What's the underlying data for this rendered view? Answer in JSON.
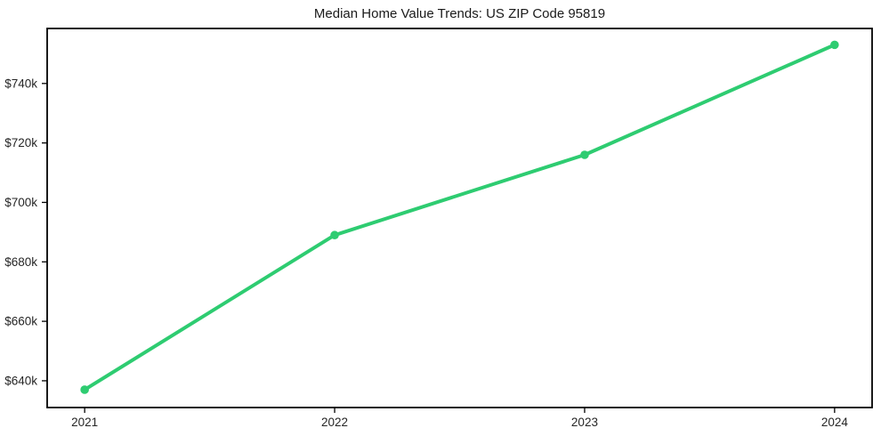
{
  "chart": {
    "title": "Median Home Value Trends: US ZIP Code 95819"
  },
  "chart_data": {
    "type": "line",
    "title": "Median Home Value Trends: US ZIP Code 95819",
    "xlabel": "",
    "ylabel": "",
    "x": [
      2021,
      2022,
      2023,
      2024
    ],
    "x_tick_labels": [
      "2021",
      "2022",
      "2023",
      "2024"
    ],
    "series": [
      {
        "name": "Median Home Value",
        "values_k": [
          637,
          689,
          716,
          753
        ],
        "value_labels": [
          "$637k",
          "$689k",
          "$716k",
          "$753k"
        ],
        "color": "#2ecc71",
        "marker": "circle"
      }
    ],
    "y_ticks": [
      {
        "value_k": 640,
        "label": "$640k"
      },
      {
        "value_k": 660,
        "label": "$660k"
      },
      {
        "value_k": 680,
        "label": "$680k"
      },
      {
        "value_k": 700,
        "label": "$700k"
      },
      {
        "value_k": 720,
        "label": "$720k"
      },
      {
        "value_k": 740,
        "label": "$740k"
      }
    ],
    "xlim": [
      2020.85,
      2024.15
    ],
    "ylim_k": [
      631,
      758.5
    ],
    "grid": false,
    "legend_position": "none",
    "plot_background": "#ffffff",
    "axis_color": "#000000",
    "tick_text_color": "#262626"
  }
}
